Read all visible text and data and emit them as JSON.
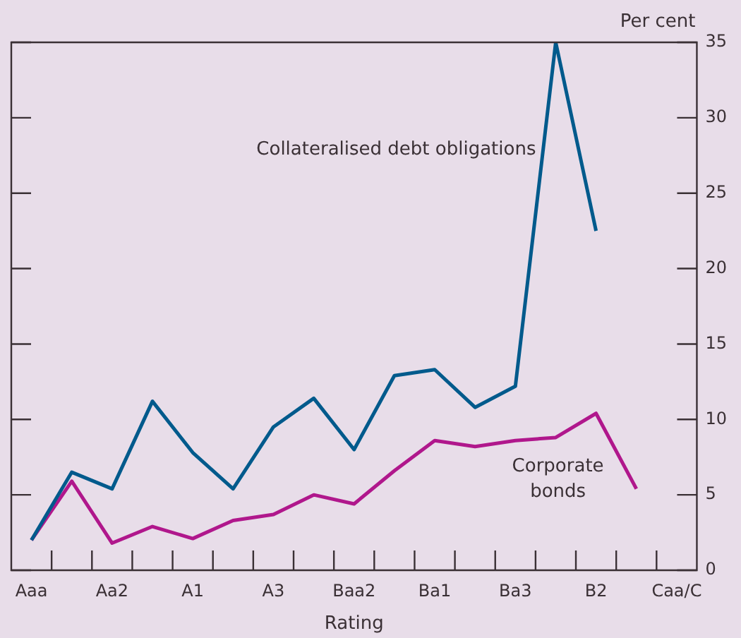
{
  "chart_data": {
    "type": "line",
    "xlabel": "Rating",
    "ylabel": "Per cent",
    "categories": [
      "Aaa",
      null,
      "Aa2",
      null,
      "A1",
      null,
      "A3",
      null,
      "Baa2",
      null,
      "Ba1",
      null,
      "Ba3",
      null,
      "B2",
      null,
      "Caa/C"
    ],
    "series": [
      {
        "name": "Collateralised debt obligations",
        "color": "#005a8c",
        "values": [
          2,
          6.5,
          5.4,
          11.2,
          7.8,
          5.4,
          9.5,
          11.4,
          8,
          12.9,
          13.3,
          10.8,
          12.2,
          35,
          22.5,
          null,
          null
        ]
      },
      {
        "name": "Corporate bonds",
        "color": "#b0178c",
        "values": [
          2,
          5.9,
          1.8,
          2.9,
          2.1,
          3.3,
          3.7,
          5,
          4.4,
          6.6,
          8.6,
          8.2,
          8.6,
          8.8,
          10.4,
          5.4,
          null
        ]
      }
    ],
    "ylim": [
      0,
      35
    ],
    "yticks": [
      0,
      5,
      10,
      15,
      20,
      25,
      30,
      35
    ],
    "grid": false,
    "legend": false,
    "marker": "none",
    "line_style": "solid"
  }
}
